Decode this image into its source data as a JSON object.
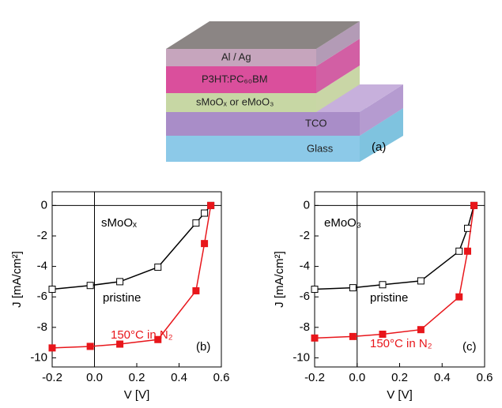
{
  "diagram": {
    "layers": [
      "Al / Ag",
      "P3HT:PC₆₀BM",
      "sMoOₓ or eMoO₃",
      "TCO",
      "Glass"
    ],
    "label": "(a)"
  },
  "chart_data": [
    {
      "type": "line",
      "annotation": "sMoOₓ",
      "panel": "(b)",
      "xlabel": "V [V]",
      "ylabel": "J [mA/cm²]",
      "xlim": [
        -0.2,
        0.6
      ],
      "ylim": [
        -10.6,
        0.9
      ],
      "xticks": [
        -0.2,
        {
          "value": 0,
          "label": "0.0"
        },
        0.2,
        0.4,
        0.6
      ],
      "yticks": [
        0,
        -2,
        -4,
        -6,
        -8,
        -10
      ],
      "x": [
        -0.2,
        -0.02,
        0.12,
        0.3,
        0.48,
        0.52,
        0.55
      ],
      "series": [
        {
          "name": "pristine",
          "color": "#000000",
          "filled": false,
          "values": [
            -5.5,
            -5.25,
            -5.0,
            -4.05,
            -1.15,
            -0.5,
            0
          ]
        },
        {
          "name": "150°C in N₂",
          "color": "#e8161b",
          "filled": true,
          "values": [
            -9.35,
            -9.25,
            -9.1,
            -8.8,
            -5.6,
            -2.5,
            0
          ]
        }
      ]
    },
    {
      "type": "line",
      "annotation": "eMoO₃",
      "panel": "(c)",
      "xlabel": "V [V]",
      "ylabel": "J [mA/cm²]",
      "xlim": [
        -0.2,
        0.6
      ],
      "ylim": [
        -10.6,
        0.9
      ],
      "xticks": [
        -0.2,
        {
          "value": 0,
          "label": "0.0"
        },
        0.2,
        0.4,
        0.6
      ],
      "yticks": [
        0,
        -2,
        -4,
        -6,
        -8,
        -10
      ],
      "x": [
        -0.2,
        -0.02,
        0.12,
        0.3,
        0.48,
        0.52,
        0.55
      ],
      "series": [
        {
          "name": "pristine",
          "color": "#000000",
          "filled": false,
          "values": [
            -5.5,
            -5.4,
            -5.2,
            -4.95,
            -3.0,
            -1.5,
            0
          ]
        },
        {
          "name": "150°C in N₂",
          "color": "#e8161b",
          "filled": true,
          "values": [
            -8.7,
            -8.6,
            -8.45,
            -8.15,
            -6.0,
            -3.0,
            0
          ]
        }
      ]
    }
  ]
}
